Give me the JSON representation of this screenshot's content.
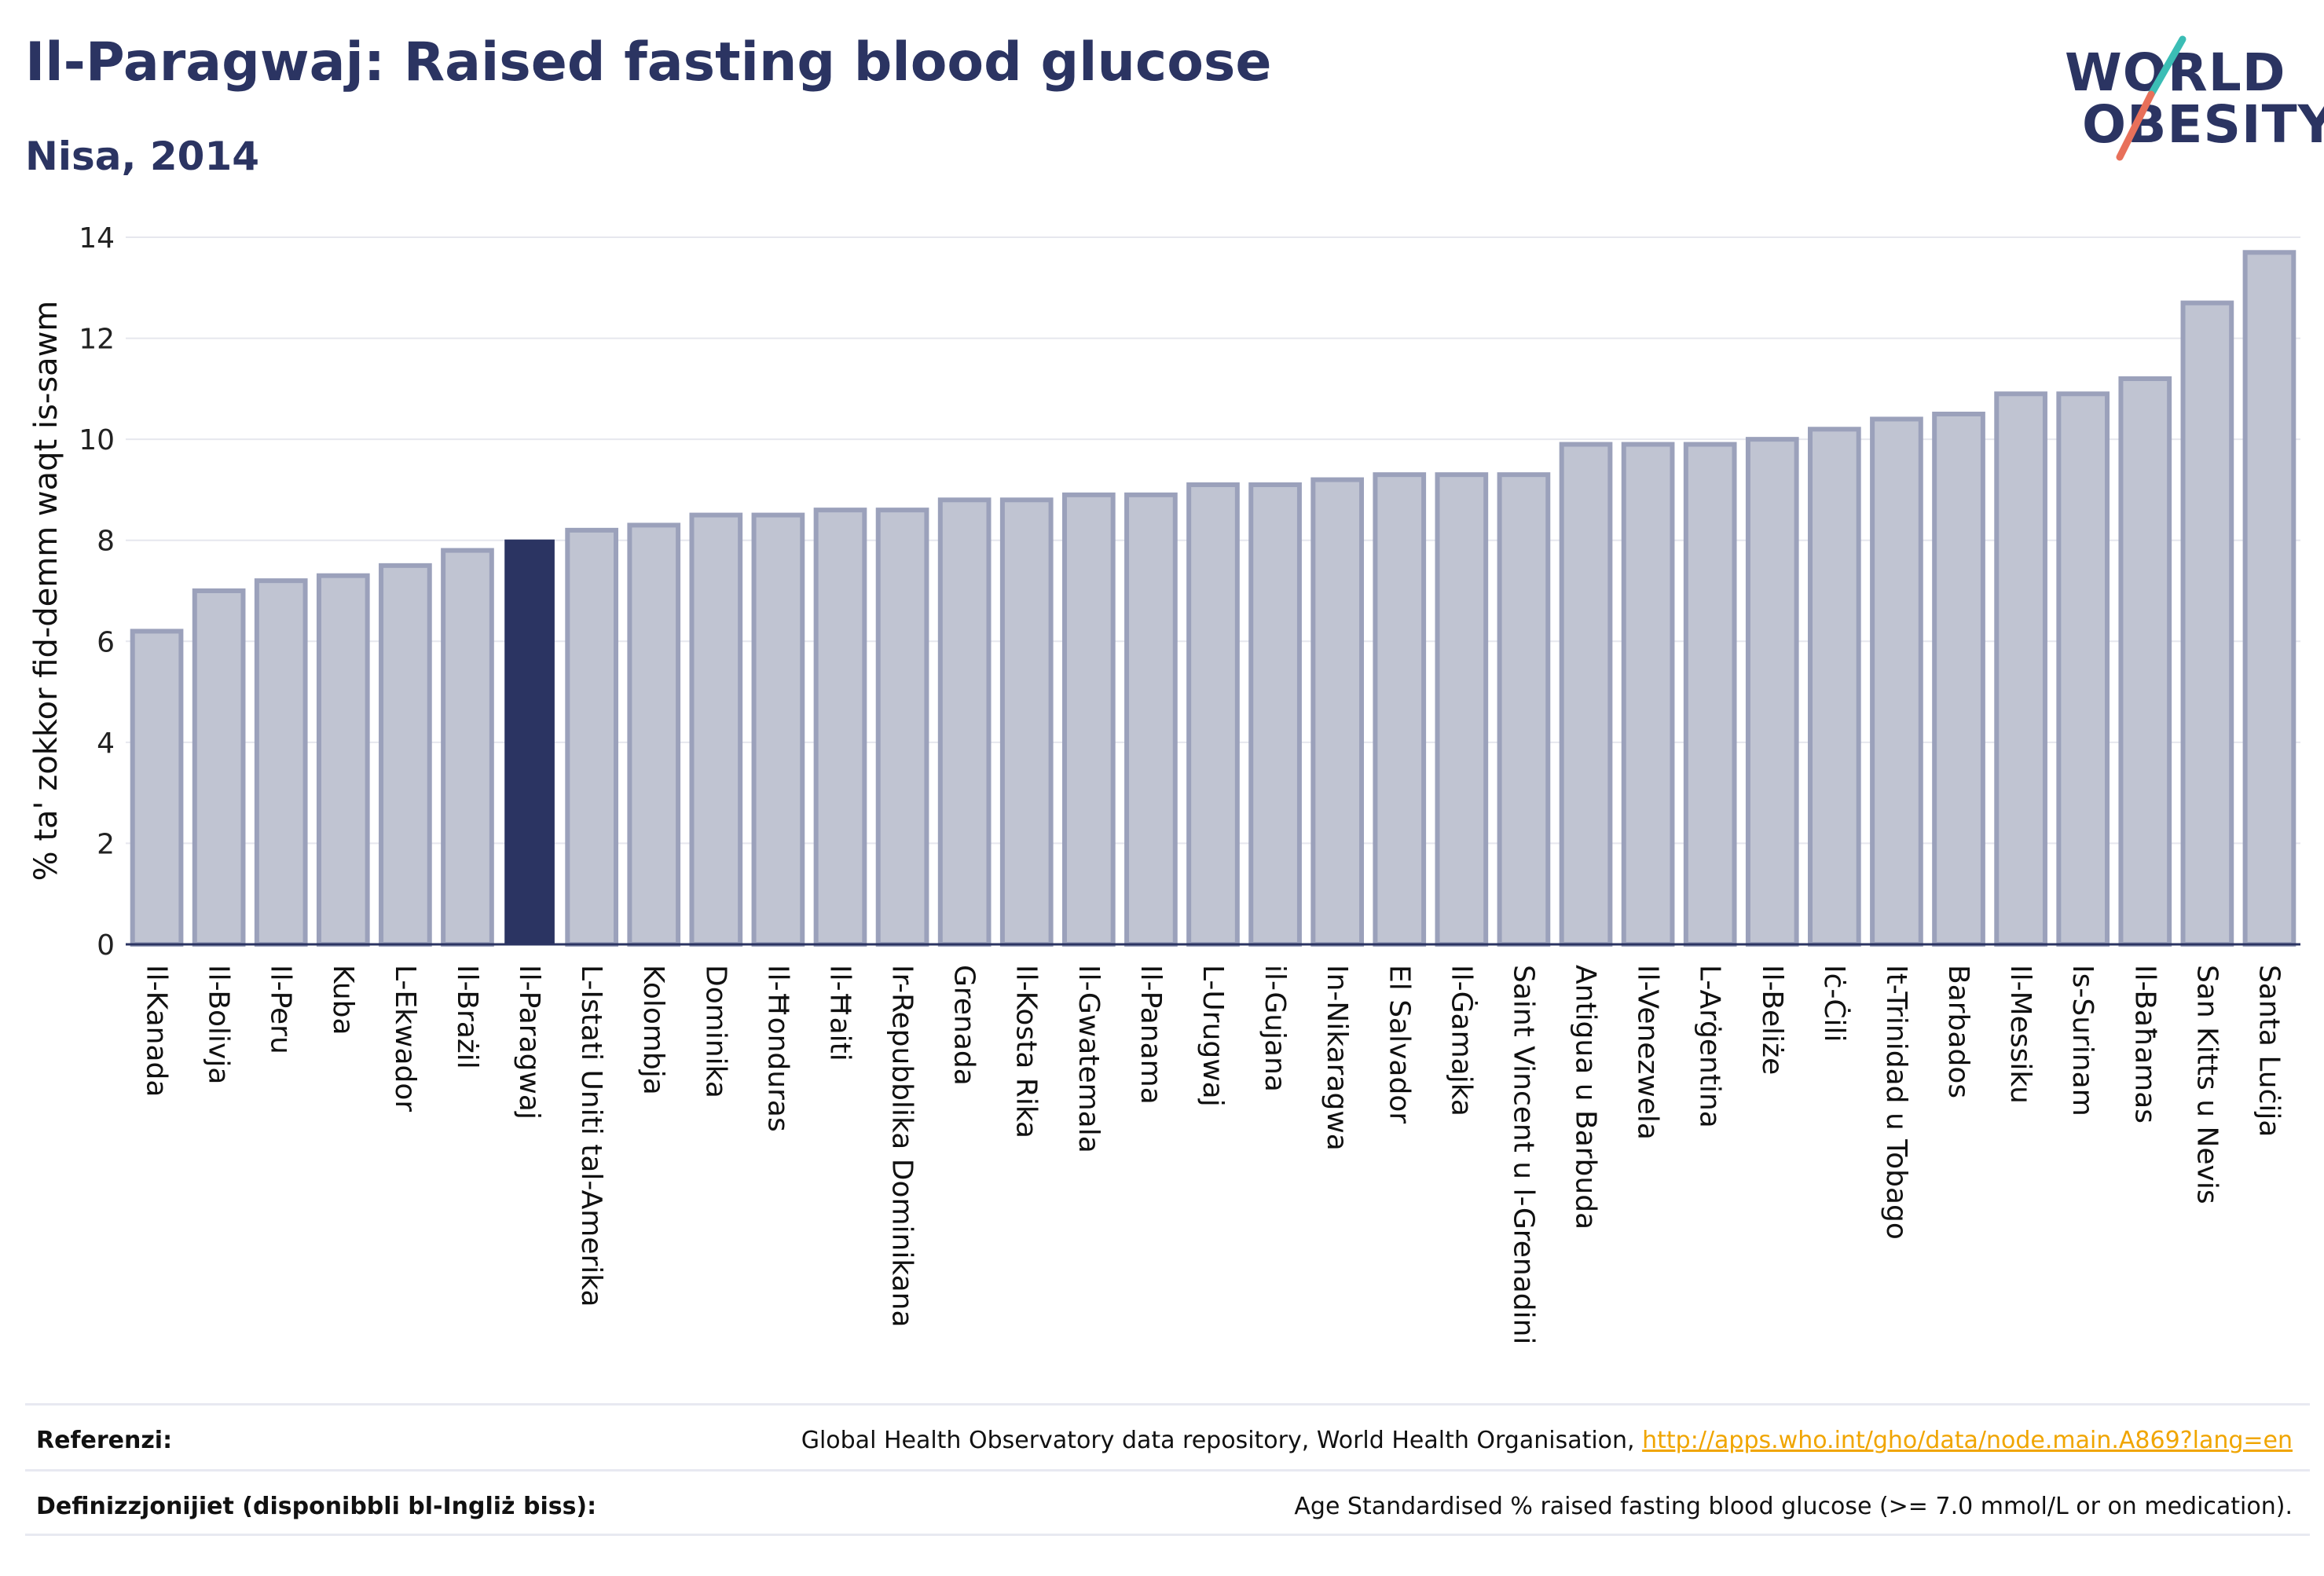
{
  "title": "Il-Paragwaj: Raised fasting blood glucose",
  "subtitle": "Nisa, 2014",
  "logo": {
    "line1": "WORLD",
    "line2": "OBESITY"
  },
  "colors": {
    "bar": "#c0c4d2",
    "bar_border": "#9ba1bb",
    "highlight": "#2b3462",
    "grid": "#e6e7ee",
    "axis": "#2b3462",
    "link": "#f0a500"
  },
  "footer": {
    "references_label": "Referenzi:",
    "references_text": "Global Health Observatory data repository, World Health Organisation,",
    "references_link": "http://apps.who.int/gho/data/node.main.A869?lang=en",
    "definitions_label": "Definizzjonijiet (disponibbli bl-Ingliż biss):",
    "definitions_text": "Age Standardised % raised fasting blood glucose (>= 7.0 mmol/L or on medication)."
  },
  "chart_data": {
    "type": "bar",
    "ylabel": "% ta' zokkor fid-demm waqt is-sawm",
    "xlabel": "",
    "ylim": [
      0,
      14
    ],
    "yticks": [
      0,
      2,
      4,
      6,
      8,
      10,
      12,
      14
    ],
    "grid": true,
    "highlight": "Il-Paragwaj",
    "categories": [
      "Il-Kanada",
      "Il-Bolivja",
      "Il-Peru",
      "Kuba",
      "L-Ekwador",
      "Il-Brażil",
      "Il-Paragwaj",
      "L-Istati Uniti tal-Amerika",
      "Kolombja",
      "Dominika",
      "Il-Ħonduras",
      "Il-Ħaiti",
      "Ir-Repubblika Dominikana",
      "Grenada",
      "Il-Kosta Rika",
      "Il-Gwatemala",
      "Il-Panama",
      "L-Urugwaj",
      "il-Gujana",
      "In-Nikaragwa",
      "El Salvador",
      "Il-Ġamajka",
      "Saint Vincent u l-Grenadini",
      "Antigua u Barbuda",
      "Il-Venezwela",
      "L-Arġentina",
      "Il-Beliże",
      "Iċ-Ċili",
      "It-Trinidad u Tobago",
      "Barbados",
      "Il-Messiku",
      "Is-Surinam",
      "Il-Baħamas",
      "San Kitts u Nevis",
      "Santa Luċija"
    ],
    "values": [
      6.2,
      7.0,
      7.2,
      7.3,
      7.5,
      7.8,
      8.0,
      8.2,
      8.3,
      8.5,
      8.5,
      8.6,
      8.6,
      8.8,
      8.8,
      8.9,
      8.9,
      9.1,
      9.1,
      9.2,
      9.3,
      9.3,
      9.3,
      9.9,
      9.9,
      9.9,
      10.0,
      10.2,
      10.4,
      10.5,
      10.9,
      10.9,
      11.2,
      12.7,
      13.7
    ]
  }
}
